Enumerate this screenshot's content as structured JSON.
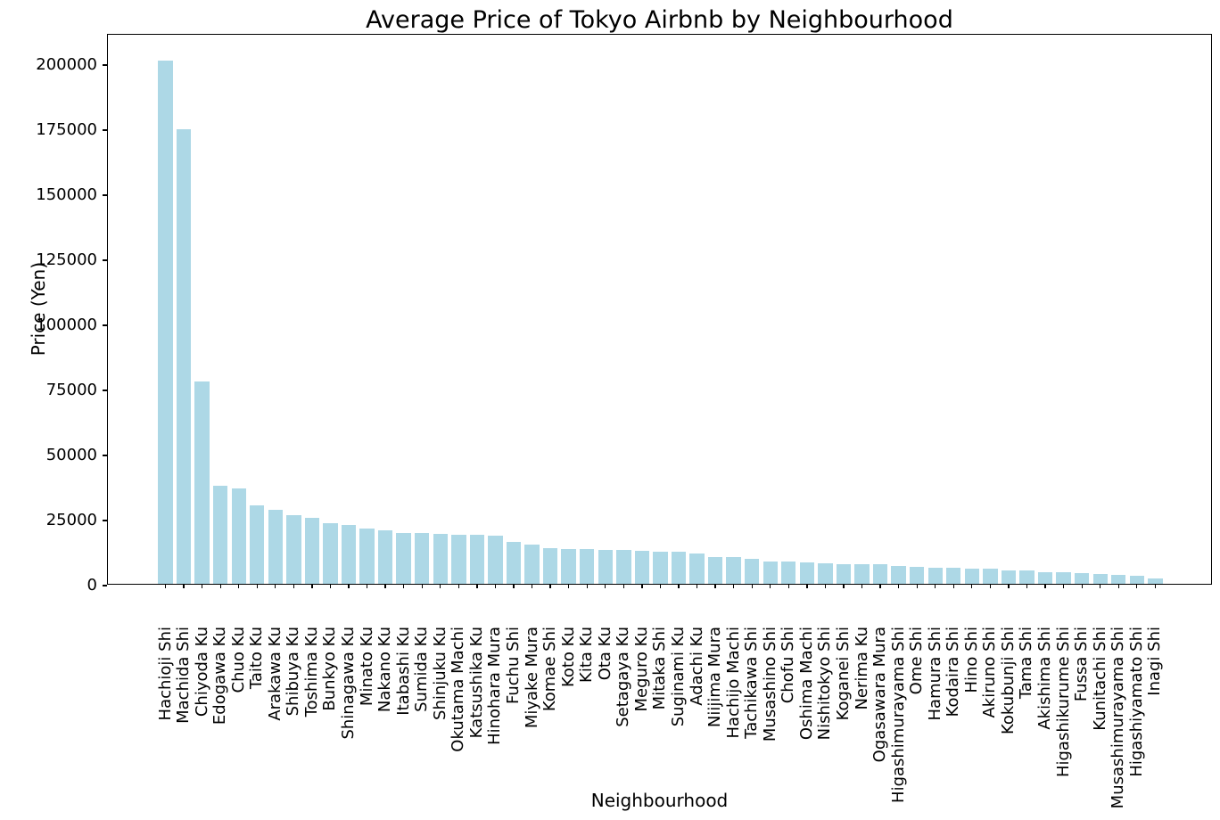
{
  "figure": {
    "background_color": "#ffffff",
    "bar_color": "#ADD8E6",
    "spine_color": "#000000",
    "text_color": "#000000"
  },
  "chart_data": {
    "type": "bar",
    "title": "Average Price of Tokyo Airbnb by Neighbourhood",
    "xlabel": "Neighbourhood",
    "ylabel": "Price (Yen)",
    "ylim": [
      0,
      211650
    ],
    "grid": false,
    "legend": "none",
    "yticks": [
      {
        "value": 0,
        "label": "0"
      },
      {
        "value": 25000,
        "label": "25000"
      },
      {
        "value": 50000,
        "label": "50000"
      },
      {
        "value": 75000,
        "label": "75000"
      },
      {
        "value": 100000,
        "label": "100000"
      },
      {
        "value": 125000,
        "label": "125000"
      },
      {
        "value": 150000,
        "label": "150000"
      },
      {
        "value": 175000,
        "label": "175000"
      },
      {
        "value": 200000,
        "label": "200000"
      }
    ],
    "categories": [
      "Hachioji Shi",
      "Machida Shi",
      "Chiyoda Ku",
      "Edogawa Ku",
      "Chuo Ku",
      "Taito Ku",
      "Arakawa Ku",
      "Shibuya Ku",
      "Toshima Ku",
      "Bunkyo Ku",
      "Shinagawa Ku",
      "Minato Ku",
      "Nakano Ku",
      "Itabashi Ku",
      "Sumida Ku",
      "Shinjuku Ku",
      "Okutama Machi",
      "Katsushika Ku",
      "Hinohara Mura",
      "Fuchu Shi",
      "Miyake Mura",
      "Komae Shi",
      "Koto Ku",
      "Kita Ku",
      "Ota Ku",
      "Setagaya Ku",
      "Meguro Ku",
      "Mitaka Shi",
      "Suginami Ku",
      "Adachi Ku",
      "Niijima Mura",
      "Hachijo Machi",
      "Tachikawa Shi",
      "Musashino Shi",
      "Chofu Shi",
      "Oshima Machi",
      "Nishitokyo Shi",
      "Koganei Shi",
      "Nerima Ku",
      "Ogasawara Mura",
      "Higashimurayama Shi",
      "Ome Shi",
      "Hamura Shi",
      "Kodaira Shi",
      "Hino Shi",
      "Akiruno Shi",
      "Kokubunji Shi",
      "Tama Shi",
      "Akishima Shi",
      "Higashikurume Shi",
      "Fussa Shi",
      "Kunitachi Shi",
      "Musashimurayama Shi",
      "Higashiyamato Shi",
      "Inagi Shi"
    ],
    "values": [
      201000,
      174800,
      77600,
      37800,
      36700,
      30100,
      28400,
      26300,
      25400,
      23200,
      22500,
      21300,
      20400,
      19600,
      19500,
      19200,
      18900,
      18700,
      18500,
      16200,
      15100,
      13800,
      13500,
      13400,
      13100,
      12900,
      12700,
      12500,
      12400,
      11500,
      10400,
      10200,
      9500,
      8700,
      8500,
      8400,
      8000,
      7700,
      7600,
      7500,
      7000,
      6400,
      6200,
      6100,
      6000,
      5900,
      5300,
      5100,
      4500,
      4300,
      4000,
      3800,
      3400,
      3200,
      2200
    ]
  }
}
